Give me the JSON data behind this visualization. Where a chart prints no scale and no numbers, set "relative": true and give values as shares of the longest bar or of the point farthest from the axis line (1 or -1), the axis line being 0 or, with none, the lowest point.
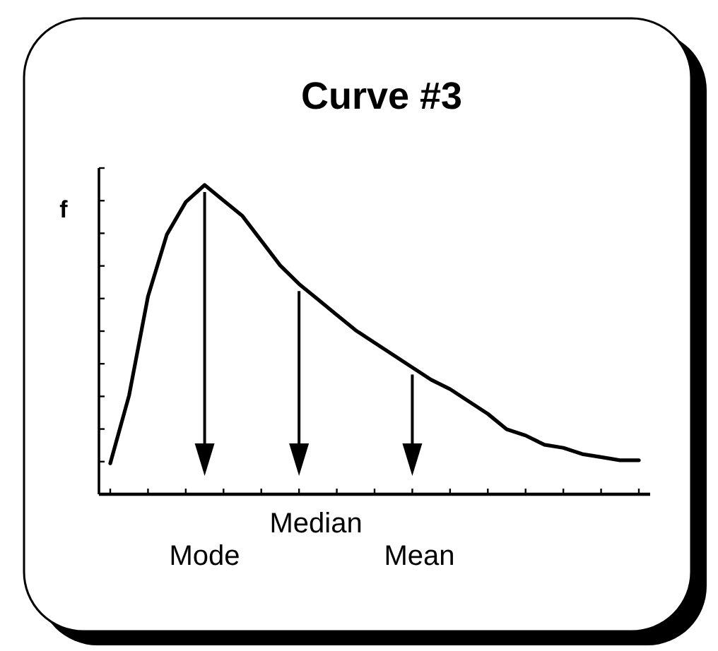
{
  "chart_data": {
    "type": "line",
    "title": "Curve #3",
    "ylabel": "f",
    "relative": true,
    "color": "#000000",
    "categories": [
      null,
      null,
      null,
      null,
      null,
      null,
      null,
      null,
      null,
      null,
      null,
      null,
      null,
      null,
      null,
      null,
      null,
      null,
      null,
      null,
      null,
      null,
      null,
      null,
      null,
      null,
      null,
      null,
      null
    ],
    "values": [
      0.1,
      0.32,
      0.64,
      0.84,
      0.945,
      1.0,
      0.95,
      0.9,
      0.82,
      0.74,
      0.68,
      0.63,
      0.58,
      0.53,
      0.49,
      0.45,
      0.41,
      0.37,
      0.34,
      0.3,
      0.26,
      0.21,
      0.19,
      0.16,
      0.15,
      0.13,
      0.12,
      0.11,
      0.11
    ],
    "annotations": [
      "Mode",
      "Median",
      "Mean"
    ]
  }
}
